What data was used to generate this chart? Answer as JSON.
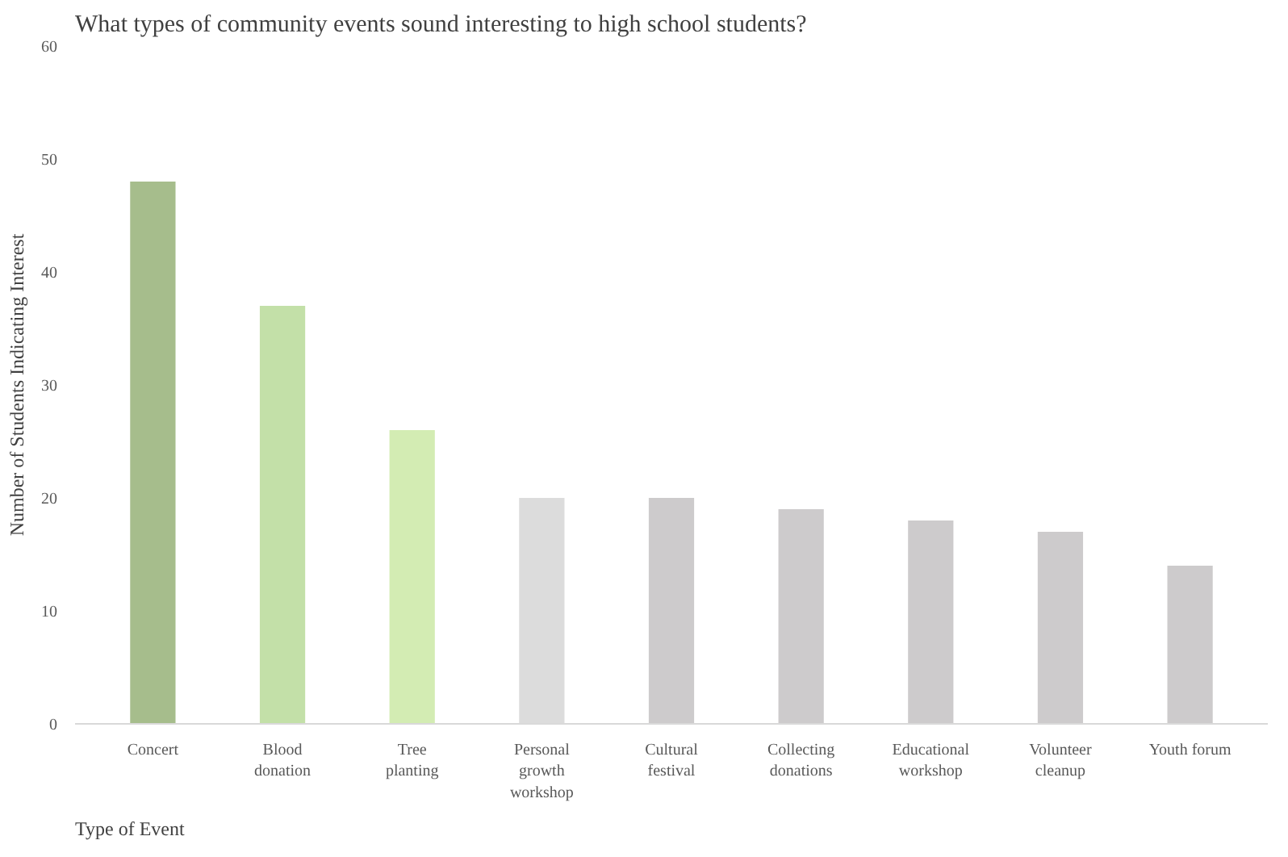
{
  "chart_data": {
    "type": "bar",
    "title": "What types of community events sound interesting to high school students?",
    "xlabel": "Type of Event",
    "ylabel": "Number of Students Indicating Interest",
    "categories": [
      "Concert",
      "Blood\ndonation",
      "Tree\nplanting",
      "Personal\ngrowth\nworkshop",
      "Cultural\nfestival",
      "Collecting\ndonations",
      "Educational\nworkshop",
      "Volunteer\ncleanup",
      "Youth forum"
    ],
    "values": [
      48,
      37,
      26,
      20,
      20,
      19,
      18,
      17,
      14
    ],
    "colors": [
      "#a6bd8c",
      "#c3e0a8",
      "#d3ecb3",
      "#dcdcdc",
      "#cdcbcc",
      "#cdcbcc",
      "#cdcbcc",
      "#cdcbcc",
      "#cdcbcc"
    ],
    "ylim": [
      0,
      60
    ],
    "yticks": [
      0,
      10,
      20,
      30,
      40,
      50,
      60
    ],
    "grid": false
  }
}
